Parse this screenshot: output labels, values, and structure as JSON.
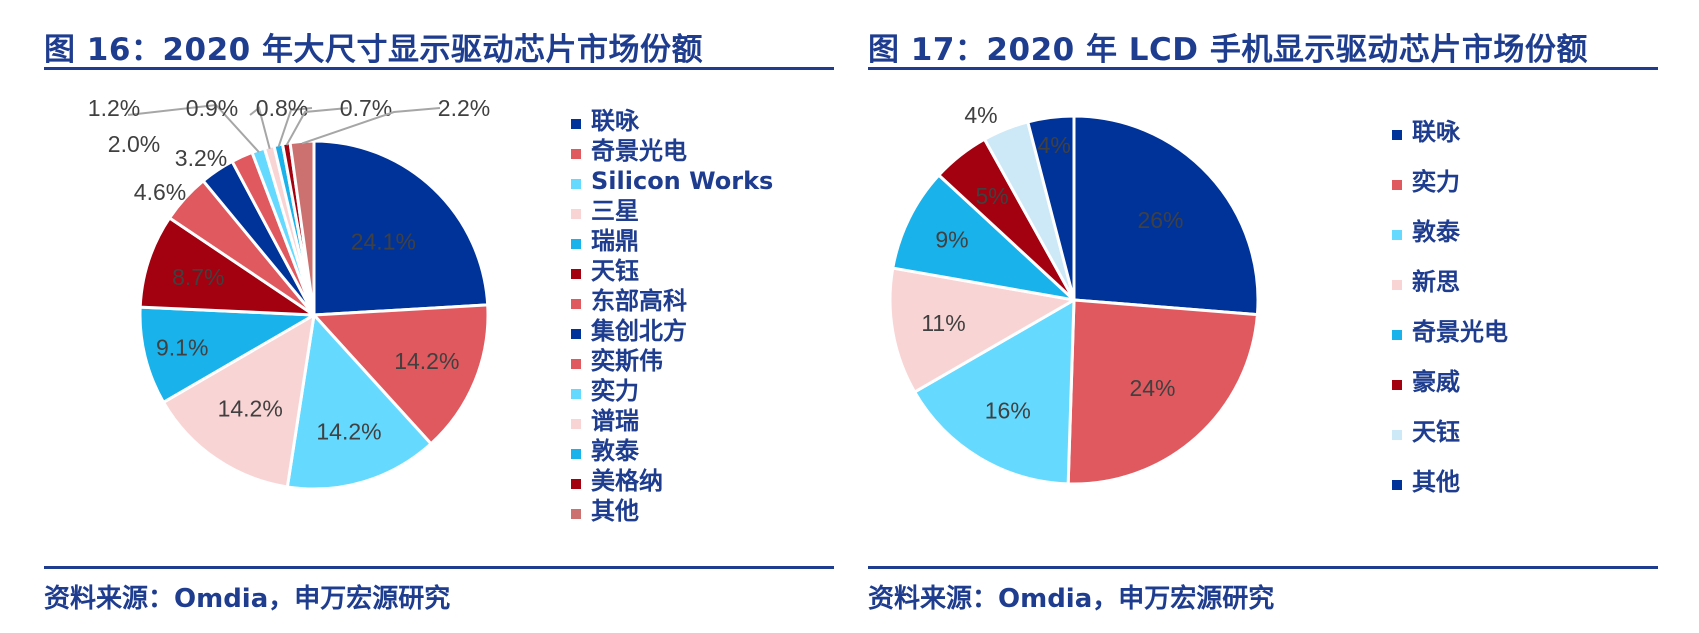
{
  "colors": {
    "navy": "#003399",
    "red": "#e0595f",
    "cyan": "#66d9ff",
    "pink": "#f9d4d4",
    "blue": "#1ab2ea",
    "darkred": "#a30010",
    "lightblue": "#cde9f8",
    "rose": "#cd7070",
    "text": "#1f3d8f"
  },
  "left": {
    "title": "图 16：2020 年大尺寸显示驱动芯片市场份额",
    "source": "资料来源：Omdia，申万宏源研究"
  },
  "right": {
    "title": "图 17：2020 年 LCD 手机显示驱动芯片市场份额",
    "source": "资料来源：Omdia，申万宏源研究"
  },
  "chart_data": [
    {
      "type": "pie",
      "title": "图 16：2020 年大尺寸显示驱动芯片市场份额",
      "categories": [
        "联咏",
        "奇景光电",
        "Silicon Works",
        "三星",
        "瑞鼎",
        "天钰",
        "东部高科",
        "集创北方",
        "奕斯伟",
        "奕力",
        "谱瑞",
        "敦泰",
        "美格纳",
        "其他"
      ],
      "values": [
        24.1,
        14.2,
        14.2,
        14.2,
        9.1,
        8.7,
        4.6,
        3.2,
        2.0,
        1.2,
        0.9,
        0.8,
        0.7,
        2.2
      ],
      "labels": [
        "24.1%",
        "14.2%",
        "14.2%",
        "14.2%",
        "9.1%",
        "8.7%",
        "4.6%",
        "3.2%",
        "2.0%",
        "1.2%",
        "0.9%",
        "0.8%",
        "0.7%",
        "2.2%"
      ],
      "slice_colors": [
        "#003399",
        "#e0595f",
        "#66d9ff",
        "#f9d4d4",
        "#1ab2ea",
        "#a30010",
        "#e0595f",
        "#003399",
        "#e0595f",
        "#66d9ff",
        "#f9d4d4",
        "#1ab2ea",
        "#a30010",
        "#cd7070"
      ],
      "legend_colors": [
        "#003399",
        "#e0595f",
        "#66d9ff",
        "#f9d4d4",
        "#1ab2ea",
        "#a30010",
        "#e0595f",
        "#003399",
        "#e0595f",
        "#66d9ff",
        "#f9d4d4",
        "#1ab2ea",
        "#a30010",
        "#cd7070"
      ],
      "legend_position": "right"
    },
    {
      "type": "pie",
      "title": "图 17：2020 年 LCD 手机显示驱动芯片市场份额",
      "categories": [
        "联咏",
        "奕力",
        "敦泰",
        "新思",
        "奇景光电",
        "豪威",
        "天钰",
        "其他"
      ],
      "values": [
        26,
        24,
        16,
        11,
        9,
        5,
        4,
        4
      ],
      "labels": [
        "26%",
        "24%",
        "16%",
        "11%",
        "9%",
        "5%",
        "4%",
        "4%"
      ],
      "slice_colors": [
        "#003399",
        "#e0595f",
        "#66d9ff",
        "#f9d4d4",
        "#1ab2ea",
        "#a30010",
        "#cde9f8",
        "#003399"
      ],
      "legend_colors": [
        "#003399",
        "#e0595f",
        "#66d9ff",
        "#f9d4d4",
        "#1ab2ea",
        "#a30010",
        "#cde9f8",
        "#003399"
      ],
      "legend_position": "right"
    }
  ]
}
